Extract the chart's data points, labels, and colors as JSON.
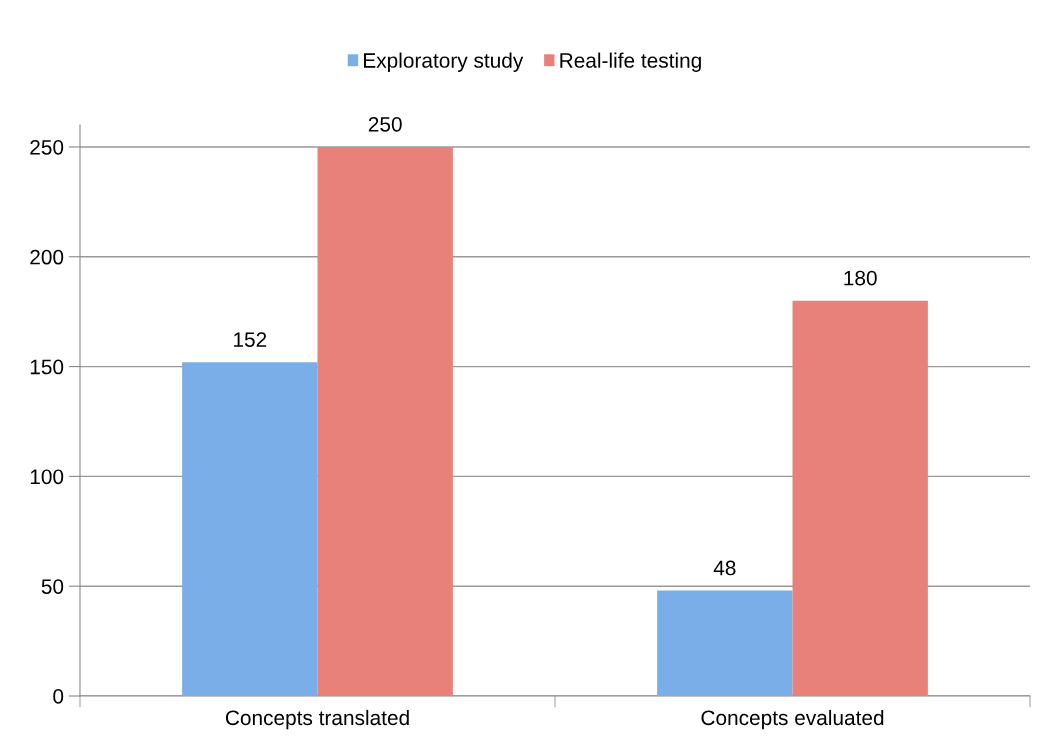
{
  "chart_data": {
    "type": "bar",
    "categories": [
      "Concepts translated",
      "Concepts evaluated"
    ],
    "series": [
      {
        "name": "Exploratory study",
        "color": "#7aaee8",
        "values": [
          152,
          48
        ]
      },
      {
        "name": "Real-life testing",
        "color": "#e9817b",
        "values": [
          250,
          180
        ]
      }
    ],
    "ylim": [
      0,
      260
    ],
    "yticks": [
      0,
      50,
      100,
      150,
      200,
      250
    ],
    "grid": "y",
    "legend": "top",
    "data_labels": true
  }
}
